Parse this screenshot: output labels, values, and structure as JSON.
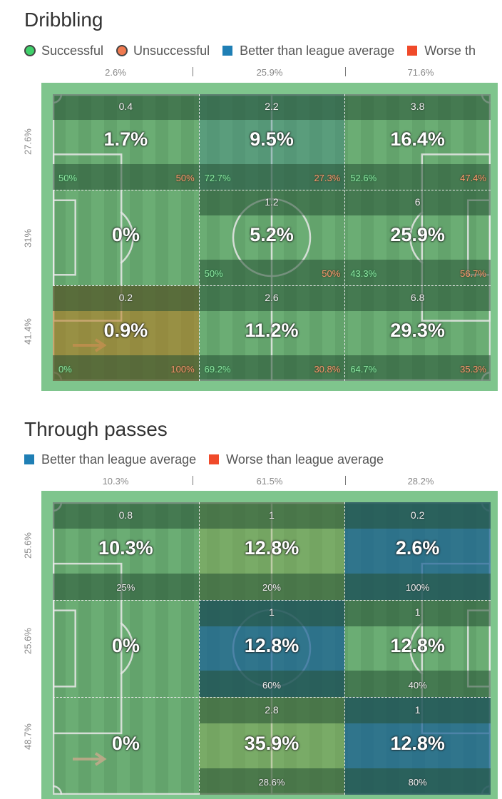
{
  "colors": {
    "successful": "#3fd06a",
    "unsuccessful": "#f07a50",
    "better": "#1f7fb5",
    "worse": "#f04a2a"
  },
  "chart_data": [
    {
      "type": "heatmap",
      "title": "Dribbling",
      "legend": [
        {
          "label": "Successful",
          "marker": "circle",
          "color": "#3fd06a"
        },
        {
          "label": "Unsuccessful",
          "marker": "circle",
          "color": "#f07a50"
        },
        {
          "label": "Better than league average",
          "marker": "square",
          "color": "#1f7fb5"
        },
        {
          "label": "Worse th",
          "marker": "square",
          "color": "#f04a2a"
        }
      ],
      "column_shares": [
        "2.6%",
        "25.9%",
        "71.6%"
      ],
      "row_shares": [
        "27.6%",
        "31%",
        "41.4%"
      ],
      "cells": [
        [
          {
            "value": "0.4",
            "pct": "1.7%",
            "succ": "50%",
            "fail": "50%",
            "tint": "none"
          },
          {
            "value": "2.2",
            "pct": "9.5%",
            "succ": "72.7%",
            "fail": "27.3%",
            "tint": "better-light"
          },
          {
            "value": "3.8",
            "pct": "16.4%",
            "succ": "52.6%",
            "fail": "47.4%",
            "tint": "none"
          }
        ],
        [
          {
            "value": "",
            "pct": "0%",
            "succ": "",
            "fail": "",
            "tint": "empty"
          },
          {
            "value": "1.2",
            "pct": "5.2%",
            "succ": "50%",
            "fail": "50%",
            "tint": "none"
          },
          {
            "value": "6",
            "pct": "25.9%",
            "succ": "43.3%",
            "fail": "56.7%",
            "tint": "none"
          }
        ],
        [
          {
            "value": "0.2",
            "pct": "0.9%",
            "succ": "0%",
            "fail": "100%",
            "tint": "worse"
          },
          {
            "value": "2.6",
            "pct": "11.2%",
            "succ": "69.2%",
            "fail": "30.8%",
            "tint": "none"
          },
          {
            "value": "6.8",
            "pct": "29.3%",
            "succ": "64.7%",
            "fail": "35.3%",
            "tint": "none"
          }
        ]
      ]
    },
    {
      "type": "heatmap",
      "title": "Through passes",
      "legend": [
        {
          "label": "Better than league average",
          "marker": "square",
          "color": "#1f7fb5"
        },
        {
          "label": "Worse than league average",
          "marker": "square",
          "color": "#f04a2a"
        }
      ],
      "column_shares": [
        "10.3%",
        "61.5%",
        "28.2%"
      ],
      "row_shares": [
        "25.6%",
        "25.6%",
        "48.7%"
      ],
      "cells": [
        [
          {
            "value": "0.8",
            "pct": "10.3%",
            "mid": "25%",
            "tint": "none"
          },
          {
            "value": "1",
            "pct": "12.8%",
            "mid": "20%",
            "tint": "worse-light"
          },
          {
            "value": "0.2",
            "pct": "2.6%",
            "mid": "100%",
            "tint": "better"
          }
        ],
        [
          {
            "value": "",
            "pct": "0%",
            "mid": "",
            "tint": "empty"
          },
          {
            "value": "1",
            "pct": "12.8%",
            "mid": "60%",
            "tint": "better"
          },
          {
            "value": "1",
            "pct": "12.8%",
            "mid": "40%",
            "tint": "none"
          }
        ],
        [
          {
            "value": "",
            "pct": "0%",
            "mid": "",
            "tint": "empty"
          },
          {
            "value": "2.8",
            "pct": "35.9%",
            "mid": "28.6%",
            "tint": "worse-light"
          },
          {
            "value": "1",
            "pct": "12.8%",
            "mid": "80%",
            "tint": "better"
          }
        ]
      ]
    }
  ]
}
